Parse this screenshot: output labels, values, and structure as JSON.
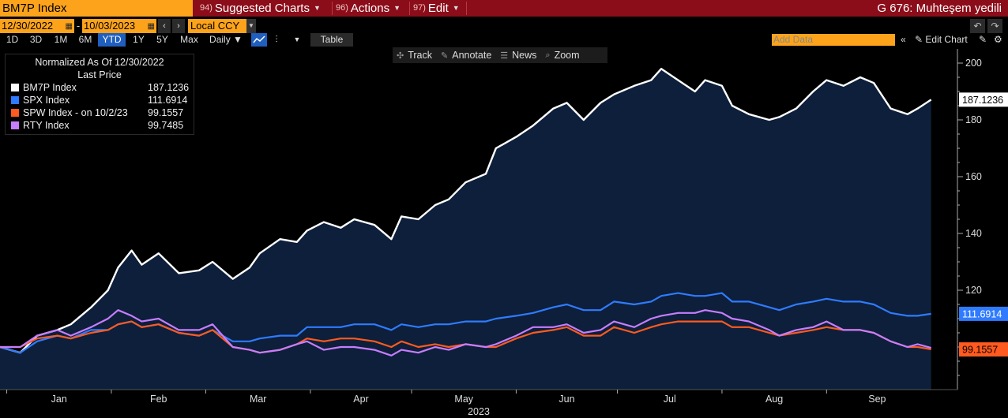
{
  "topbar": {
    "ticker": "BM7P Index",
    "menus": [
      {
        "num": "94)",
        "label": "Suggested Charts"
      },
      {
        "num": "96)",
        "label": "Actions"
      },
      {
        "num": "97)",
        "label": "Edit"
      }
    ],
    "right_text": "G 676: Muhteşem yedili"
  },
  "range": {
    "start_date": "12/30/2022",
    "end_date": "10/03/2023",
    "dash": "-",
    "currency": "Local CCY"
  },
  "periods": [
    "1D",
    "3D",
    "1M",
    "6M",
    "YTD",
    "1Y",
    "5Y",
    "Max"
  ],
  "active_period": "YTD",
  "frequency": "Daily ▼",
  "table_label": "Table",
  "add_data_placeholder": "Add Data",
  "edit_chart_label": "Edit Chart",
  "chart_tools": [
    {
      "icon": "crosshair-icon",
      "glyph": "✣",
      "label": "Track"
    },
    {
      "icon": "pencil-icon",
      "glyph": "✎",
      "label": "Annotate"
    },
    {
      "icon": "news-icon",
      "glyph": "☰",
      "label": "News"
    },
    {
      "icon": "magnifier-icon",
      "glyph": "⌕",
      "label": "Zoom"
    }
  ],
  "legend": {
    "header1": "Normalized As Of 12/30/2022",
    "header2": "Last Price",
    "rows": [
      {
        "name": "BM7P Index",
        "value": "187.1236",
        "color": "#ffffff"
      },
      {
        "name": "SPX Index",
        "value": "111.6914",
        "color": "#2f7bff"
      },
      {
        "name": "SPW Index -  on 10/2/23",
        "value": "99.1557",
        "color": "#ff5a1f"
      },
      {
        "name": "RTY Index",
        "value": "99.7485",
        "color": "#c77dff"
      }
    ]
  },
  "chart_data": {
    "type": "area",
    "xlabel": "2023",
    "ylim": [
      85,
      205
    ],
    "y_ticks": [
      120,
      140,
      160,
      180,
      200
    ],
    "x_tick_labels": [
      "Jan",
      "Feb",
      "Mar",
      "Apr",
      "May",
      "Jun",
      "Jul",
      "Aug",
      "Sep"
    ],
    "last_value_labels": [
      {
        "series": "BM7P Index",
        "text": "187.1236",
        "value": 187.1236,
        "bg": "#ffffff",
        "fg": "#000000"
      },
      {
        "series": "SPX Index",
        "text": "111.6914",
        "value": 111.6914,
        "bg": "#2f7bff",
        "fg": "#ffffff"
      },
      {
        "series": "SPW Index",
        "text": "99.1557",
        "value": 99.1557,
        "bg": "#ff5a1f",
        "fg": "#000000"
      }
    ],
    "x_start": "2022-12-30",
    "series": [
      {
        "name": "BM7P Index",
        "color": "#ffffff",
        "fill": "#0d1f3a",
        "points": [
          [
            "2022-12-30",
            100
          ],
          [
            "2023-01-05",
            98
          ],
          [
            "2023-01-10",
            104
          ],
          [
            "2023-01-16",
            106
          ],
          [
            "2023-01-20",
            108
          ],
          [
            "2023-01-26",
            114
          ],
          [
            "2023-01-31",
            120
          ],
          [
            "2023-02-03",
            128
          ],
          [
            "2023-02-07",
            134
          ],
          [
            "2023-02-10",
            129
          ],
          [
            "2023-02-15",
            133
          ],
          [
            "2023-02-21",
            126
          ],
          [
            "2023-02-27",
            127
          ],
          [
            "2023-03-03",
            130
          ],
          [
            "2023-03-09",
            124
          ],
          [
            "2023-03-14",
            128
          ],
          [
            "2023-03-17",
            133
          ],
          [
            "2023-03-23",
            138
          ],
          [
            "2023-03-28",
            137
          ],
          [
            "2023-03-31",
            141
          ],
          [
            "2023-04-05",
            144
          ],
          [
            "2023-04-10",
            142
          ],
          [
            "2023-04-14",
            145
          ],
          [
            "2023-04-20",
            143
          ],
          [
            "2023-04-25",
            138
          ],
          [
            "2023-04-28",
            146
          ],
          [
            "2023-05-03",
            145
          ],
          [
            "2023-05-08",
            150
          ],
          [
            "2023-05-12",
            152
          ],
          [
            "2023-05-17",
            158
          ],
          [
            "2023-05-23",
            161
          ],
          [
            "2023-05-26",
            170
          ],
          [
            "2023-06-01",
            174
          ],
          [
            "2023-06-06",
            178
          ],
          [
            "2023-06-12",
            184
          ],
          [
            "2023-06-16",
            186
          ],
          [
            "2023-06-21",
            180
          ],
          [
            "2023-06-26",
            186
          ],
          [
            "2023-06-30",
            189
          ],
          [
            "2023-07-06",
            192
          ],
          [
            "2023-07-11",
            194
          ],
          [
            "2023-07-14",
            198
          ],
          [
            "2023-07-19",
            194
          ],
          [
            "2023-07-24",
            190
          ],
          [
            "2023-07-27",
            194
          ],
          [
            "2023-08-01",
            192
          ],
          [
            "2023-08-04",
            185
          ],
          [
            "2023-08-09",
            182
          ],
          [
            "2023-08-15",
            180
          ],
          [
            "2023-08-18",
            181
          ],
          [
            "2023-08-23",
            184
          ],
          [
            "2023-08-28",
            190
          ],
          [
            "2023-09-01",
            194
          ],
          [
            "2023-09-06",
            192
          ],
          [
            "2023-09-11",
            195
          ],
          [
            "2023-09-15",
            193
          ],
          [
            "2023-09-20",
            184
          ],
          [
            "2023-09-25",
            182
          ],
          [
            "2023-09-28",
            184
          ],
          [
            "2023-10-02",
            187.1
          ]
        ]
      },
      {
        "name": "SPX Index",
        "color": "#2f7bff",
        "fill": "",
        "points": [
          [
            "2022-12-30",
            100
          ],
          [
            "2023-01-05",
            98
          ],
          [
            "2023-01-10",
            102
          ],
          [
            "2023-01-16",
            104
          ],
          [
            "2023-01-20",
            103
          ],
          [
            "2023-01-26",
            106
          ],
          [
            "2023-01-31",
            106
          ],
          [
            "2023-02-03",
            108
          ],
          [
            "2023-02-07",
            109
          ],
          [
            "2023-02-10",
            107
          ],
          [
            "2023-02-15",
            108
          ],
          [
            "2023-02-21",
            105
          ],
          [
            "2023-02-27",
            104
          ],
          [
            "2023-03-03",
            106
          ],
          [
            "2023-03-09",
            102
          ],
          [
            "2023-03-14",
            102
          ],
          [
            "2023-03-17",
            103
          ],
          [
            "2023-03-23",
            104
          ],
          [
            "2023-03-28",
            104
          ],
          [
            "2023-03-31",
            107
          ],
          [
            "2023-04-05",
            107
          ],
          [
            "2023-04-10",
            107
          ],
          [
            "2023-04-14",
            108
          ],
          [
            "2023-04-20",
            108
          ],
          [
            "2023-04-25",
            106
          ],
          [
            "2023-04-28",
            108
          ],
          [
            "2023-05-03",
            107
          ],
          [
            "2023-05-08",
            108
          ],
          [
            "2023-05-12",
            108
          ],
          [
            "2023-05-17",
            109
          ],
          [
            "2023-05-23",
            109
          ],
          [
            "2023-05-26",
            110
          ],
          [
            "2023-06-01",
            111
          ],
          [
            "2023-06-06",
            112
          ],
          [
            "2023-06-12",
            114
          ],
          [
            "2023-06-16",
            115
          ],
          [
            "2023-06-21",
            113
          ],
          [
            "2023-06-26",
            113
          ],
          [
            "2023-06-30",
            116
          ],
          [
            "2023-07-06",
            115
          ],
          [
            "2023-07-11",
            116
          ],
          [
            "2023-07-14",
            118
          ],
          [
            "2023-07-19",
            119
          ],
          [
            "2023-07-24",
            118
          ],
          [
            "2023-07-27",
            118
          ],
          [
            "2023-08-01",
            119
          ],
          [
            "2023-08-04",
            116
          ],
          [
            "2023-08-09",
            116
          ],
          [
            "2023-08-15",
            114
          ],
          [
            "2023-08-18",
            113
          ],
          [
            "2023-08-23",
            115
          ],
          [
            "2023-08-28",
            116
          ],
          [
            "2023-09-01",
            117
          ],
          [
            "2023-09-06",
            116
          ],
          [
            "2023-09-11",
            116
          ],
          [
            "2023-09-15",
            115
          ],
          [
            "2023-09-20",
            112
          ],
          [
            "2023-09-25",
            111
          ],
          [
            "2023-09-28",
            111
          ],
          [
            "2023-10-02",
            111.7
          ]
        ]
      },
      {
        "name": "SPW Index",
        "color": "#ff5a1f",
        "fill": "",
        "points": [
          [
            "2022-12-30",
            100
          ],
          [
            "2023-01-05",
            100
          ],
          [
            "2023-01-10",
            103
          ],
          [
            "2023-01-16",
            104
          ],
          [
            "2023-01-20",
            103
          ],
          [
            "2023-01-26",
            105
          ],
          [
            "2023-01-31",
            106
          ],
          [
            "2023-02-03",
            108
          ],
          [
            "2023-02-07",
            109
          ],
          [
            "2023-02-10",
            107
          ],
          [
            "2023-02-15",
            108
          ],
          [
            "2023-02-21",
            105
          ],
          [
            "2023-02-27",
            104
          ],
          [
            "2023-03-03",
            106
          ],
          [
            "2023-03-09",
            100
          ],
          [
            "2023-03-14",
            99
          ],
          [
            "2023-03-17",
            98
          ],
          [
            "2023-03-23",
            99
          ],
          [
            "2023-03-28",
            101
          ],
          [
            "2023-03-31",
            103
          ],
          [
            "2023-04-05",
            102
          ],
          [
            "2023-04-10",
            103
          ],
          [
            "2023-04-14",
            103
          ],
          [
            "2023-04-20",
            102
          ],
          [
            "2023-04-25",
            100
          ],
          [
            "2023-04-28",
            102
          ],
          [
            "2023-05-03",
            100
          ],
          [
            "2023-05-08",
            101
          ],
          [
            "2023-05-12",
            100
          ],
          [
            "2023-05-17",
            101
          ],
          [
            "2023-05-23",
            100
          ],
          [
            "2023-05-26",
            100
          ],
          [
            "2023-06-01",
            103
          ],
          [
            "2023-06-06",
            105
          ],
          [
            "2023-06-12",
            106
          ],
          [
            "2023-06-16",
            107
          ],
          [
            "2023-06-21",
            104
          ],
          [
            "2023-06-26",
            104
          ],
          [
            "2023-06-30",
            107
          ],
          [
            "2023-07-06",
            105
          ],
          [
            "2023-07-11",
            107
          ],
          [
            "2023-07-14",
            108
          ],
          [
            "2023-07-19",
            109
          ],
          [
            "2023-07-24",
            109
          ],
          [
            "2023-07-27",
            109
          ],
          [
            "2023-08-01",
            109
          ],
          [
            "2023-08-04",
            107
          ],
          [
            "2023-08-09",
            107
          ],
          [
            "2023-08-15",
            105
          ],
          [
            "2023-08-18",
            104
          ],
          [
            "2023-08-23",
            105
          ],
          [
            "2023-08-28",
            106
          ],
          [
            "2023-09-01",
            107
          ],
          [
            "2023-09-06",
            106
          ],
          [
            "2023-09-11",
            106
          ],
          [
            "2023-09-15",
            105
          ],
          [
            "2023-09-20",
            102
          ],
          [
            "2023-09-25",
            100
          ],
          [
            "2023-09-28",
            100
          ],
          [
            "2023-10-02",
            99.2
          ]
        ]
      },
      {
        "name": "RTY Index",
        "color": "#c77dff",
        "fill": "",
        "points": [
          [
            "2022-12-30",
            100
          ],
          [
            "2023-01-05",
            100
          ],
          [
            "2023-01-10",
            104
          ],
          [
            "2023-01-16",
            106
          ],
          [
            "2023-01-20",
            104
          ],
          [
            "2023-01-26",
            107
          ],
          [
            "2023-01-31",
            110
          ],
          [
            "2023-02-03",
            113
          ],
          [
            "2023-02-07",
            111
          ],
          [
            "2023-02-10",
            109
          ],
          [
            "2023-02-15",
            110
          ],
          [
            "2023-02-21",
            106
          ],
          [
            "2023-02-27",
            106
          ],
          [
            "2023-03-03",
            108
          ],
          [
            "2023-03-09",
            100
          ],
          [
            "2023-03-14",
            99
          ],
          [
            "2023-03-17",
            98
          ],
          [
            "2023-03-23",
            99
          ],
          [
            "2023-03-28",
            101
          ],
          [
            "2023-03-31",
            102
          ],
          [
            "2023-04-05",
            99
          ],
          [
            "2023-04-10",
            100
          ],
          [
            "2023-04-14",
            100
          ],
          [
            "2023-04-20",
            99
          ],
          [
            "2023-04-25",
            97
          ],
          [
            "2023-04-28",
            99
          ],
          [
            "2023-05-03",
            98
          ],
          [
            "2023-05-08",
            100
          ],
          [
            "2023-05-12",
            99
          ],
          [
            "2023-05-17",
            101
          ],
          [
            "2023-05-23",
            100
          ],
          [
            "2023-05-26",
            101
          ],
          [
            "2023-06-01",
            104
          ],
          [
            "2023-06-06",
            107
          ],
          [
            "2023-06-12",
            107
          ],
          [
            "2023-06-16",
            108
          ],
          [
            "2023-06-21",
            105
          ],
          [
            "2023-06-26",
            106
          ],
          [
            "2023-06-30",
            109
          ],
          [
            "2023-07-06",
            107
          ],
          [
            "2023-07-11",
            110
          ],
          [
            "2023-07-14",
            111
          ],
          [
            "2023-07-19",
            112
          ],
          [
            "2023-07-24",
            112
          ],
          [
            "2023-07-27",
            113
          ],
          [
            "2023-08-01",
            112
          ],
          [
            "2023-08-04",
            110
          ],
          [
            "2023-08-09",
            109
          ],
          [
            "2023-08-15",
            106
          ],
          [
            "2023-08-18",
            104
          ],
          [
            "2023-08-23",
            106
          ],
          [
            "2023-08-28",
            107
          ],
          [
            "2023-09-01",
            109
          ],
          [
            "2023-09-06",
            106
          ],
          [
            "2023-09-11",
            106
          ],
          [
            "2023-09-15",
            105
          ],
          [
            "2023-09-20",
            102
          ],
          [
            "2023-09-25",
            100
          ],
          [
            "2023-09-28",
            101
          ],
          [
            "2023-10-02",
            99.7
          ]
        ]
      }
    ],
    "month_ticks": [
      "2023-01-01",
      "2023-02-01",
      "2023-03-01",
      "2023-04-01",
      "2023-05-01",
      "2023-06-01",
      "2023-07-01",
      "2023-08-01",
      "2023-09-01"
    ]
  }
}
